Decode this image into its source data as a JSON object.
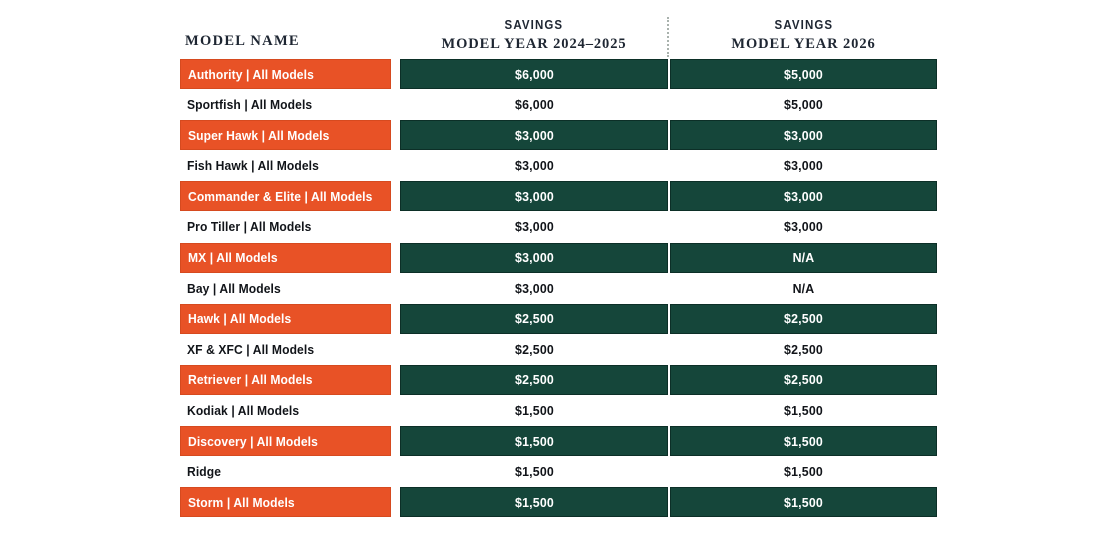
{
  "chart_data": {
    "type": "table",
    "title": "",
    "columns": [
      "MODEL NAME",
      "SAVINGS MODEL YEAR 2024–2025",
      "SAVINGS MODEL YEAR 2026"
    ],
    "rows": [
      {
        "model": "Authority | All Models",
        "savings_2024_2025": "$6,000",
        "savings_2026": "$5,000",
        "highlight": true
      },
      {
        "model": "Sportfish | All Models",
        "savings_2024_2025": "$6,000",
        "savings_2026": "$5,000",
        "highlight": false
      },
      {
        "model": "Super Hawk | All Models",
        "savings_2024_2025": "$3,000",
        "savings_2026": "$3,000",
        "highlight": true
      },
      {
        "model": "Fish Hawk | All Models",
        "savings_2024_2025": "$3,000",
        "savings_2026": "$3,000",
        "highlight": false
      },
      {
        "model": "Commander & Elite | All Models",
        "savings_2024_2025": "$3,000",
        "savings_2026": "$3,000",
        "highlight": true
      },
      {
        "model": "Pro Tiller | All Models",
        "savings_2024_2025": "$3,000",
        "savings_2026": "$3,000",
        "highlight": false
      },
      {
        "model": "MX | All Models",
        "savings_2024_2025": "$3,000",
        "savings_2026": "N/A",
        "highlight": true
      },
      {
        "model": "Bay | All Models",
        "savings_2024_2025": "$3,000",
        "savings_2026": "N/A",
        "highlight": false
      },
      {
        "model": "Hawk | All Models",
        "savings_2024_2025": "$2,500",
        "savings_2026": "$2,500",
        "highlight": true
      },
      {
        "model": "XF & XFC | All Models",
        "savings_2024_2025": "$2,500",
        "savings_2026": "$2,500",
        "highlight": false
      },
      {
        "model": "Retriever | All Models",
        "savings_2024_2025": "$2,500",
        "savings_2026": "$2,500",
        "highlight": true
      },
      {
        "model": "Kodiak | All Models",
        "savings_2024_2025": "$1,500",
        "savings_2026": "$1,500",
        "highlight": false
      },
      {
        "model": "Discovery | All Models",
        "savings_2024_2025": "$1,500",
        "savings_2026": "$1,500",
        "highlight": true
      },
      {
        "model": "Ridge",
        "savings_2024_2025": "$1,500",
        "savings_2026": "$1,500",
        "highlight": false
      },
      {
        "model": "Storm | All Models",
        "savings_2024_2025": "$1,500",
        "savings_2026": "$1,500",
        "highlight": true
      }
    ]
  },
  "header": {
    "model_name": "MODEL NAME",
    "col2_line1": "SAVINGS",
    "col2_line2": "MODEL YEAR 2024–2025",
    "col3_line1": "SAVINGS",
    "col3_line2": "MODEL YEAR 2026"
  },
  "colors": {
    "orange": "#E85226",
    "orange-border": "#D64A1F",
    "green": "#15463A",
    "green-border": "#0C2F27",
    "divider-dotted": "#A9B2AD",
    "header-text": "#1E2632",
    "text-dark": "#111419"
  }
}
